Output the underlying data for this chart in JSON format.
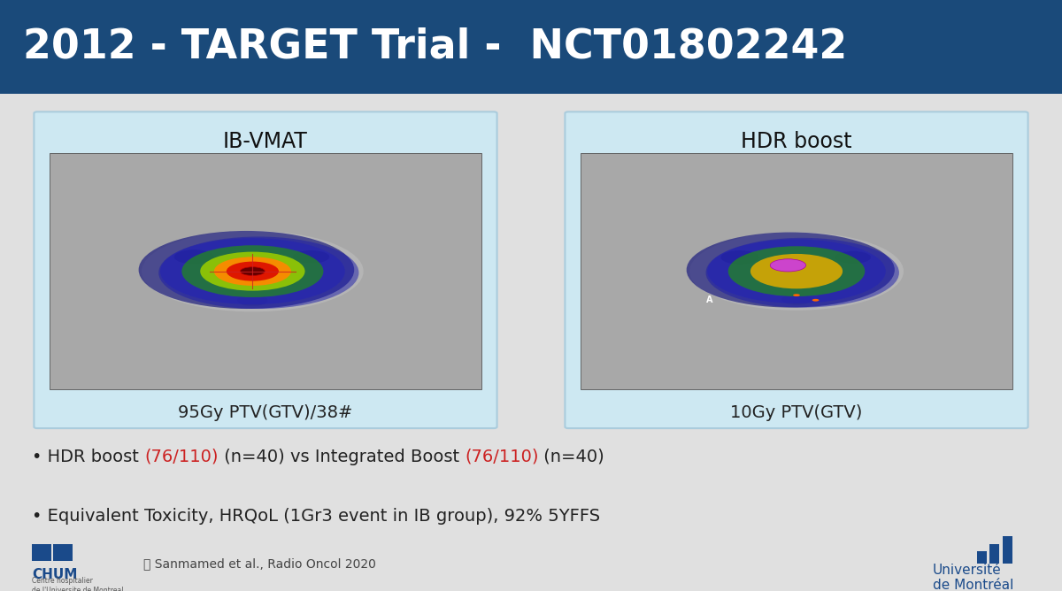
{
  "title": "2012 - TARGET Trial -  NCT01802242",
  "title_color": "#FFFFFF",
  "title_bg_color": "#1a4a7a",
  "slide_bg_color": "#e0e0e0",
  "left_panel_title": "IB-VMAT",
  "right_panel_title": "HDR boost",
  "left_caption": "95Gy PTV(GTV)/38#",
  "right_caption": "10Gy PTV(GTV)",
  "caption_color": "#333333",
  "panel_bg_color": "#cde8f2",
  "panel_border_color": "#aaccdd",
  "bullet1_part1": "• HDR boost ",
  "bullet1_red1": "(76/110)",
  "bullet1_part2": " (n=40) vs Integrated Boost ",
  "bullet1_red2": "(76/110)",
  "bullet1_part3": " (n=40)",
  "bullet2": "• Equivalent Toxicity, HRQoL (1Gr3 event in IB group), 92% 5YFFS",
  "bullet_color": "#222222",
  "red_color": "#cc2222",
  "reference": "Sanmamed et al., Radio Oncol 2020",
  "ref_color": "#444444",
  "chum_text": "CHUM",
  "chum_sub": "Centre hospitalier\nde l'Universite de Montreal",
  "univ_text": "Universite\nde Montreal"
}
